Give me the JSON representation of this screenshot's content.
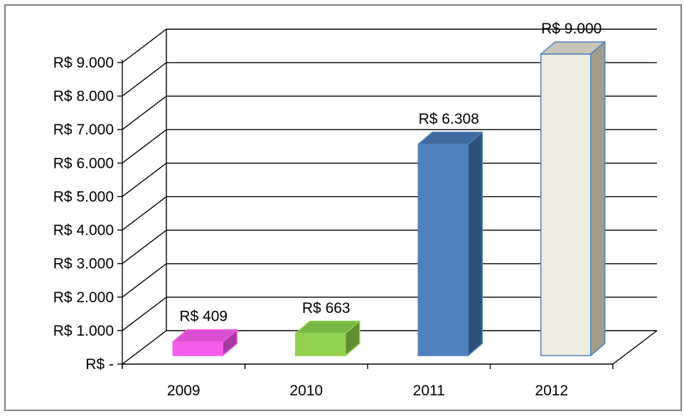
{
  "chart_data": {
    "type": "bar",
    "title": "",
    "xlabel": "",
    "ylabel": "",
    "categories": [
      "2009",
      "2010",
      "2011",
      "2012"
    ],
    "values": [
      409,
      663,
      6308,
      9000
    ],
    "data_labels": [
      "R$ 409",
      "R$ 663",
      "R$ 6.308",
      "R$ 9.000"
    ],
    "ylim": [
      0,
      9000
    ],
    "yticks": [
      0,
      1000,
      2000,
      3000,
      4000,
      5000,
      6000,
      7000,
      8000,
      9000
    ],
    "ytick_labels": [
      "R$ -",
      "R$ 1.000",
      "R$ 2.000",
      "R$ 3.000",
      "R$ 4.000",
      "R$ 5.000",
      "R$ 6.000",
      "R$ 7.000",
      "R$ 8.000",
      "R$ 9.000"
    ],
    "grid": true,
    "legend": "none",
    "style": "3d-column",
    "bar_colors": [
      {
        "front": "#f25ee8",
        "top": "#d94fd0",
        "side": "#a63aa0",
        "stroke": "#f25ee8"
      },
      {
        "front": "#92d050",
        "top": "#7ab845",
        "side": "#5e8f30",
        "stroke": "#92d050"
      },
      {
        "front": "#4f81bd",
        "top": "#3e6aa0",
        "side": "#2d4f78",
        "stroke": "#4f81bd"
      },
      {
        "front": "#eeece1",
        "top": "#c9c6b8",
        "side": "#a29d8e",
        "stroke": "#4f81bd"
      }
    ],
    "grid_color": "#000000",
    "border_color": "#7f7f7f"
  }
}
